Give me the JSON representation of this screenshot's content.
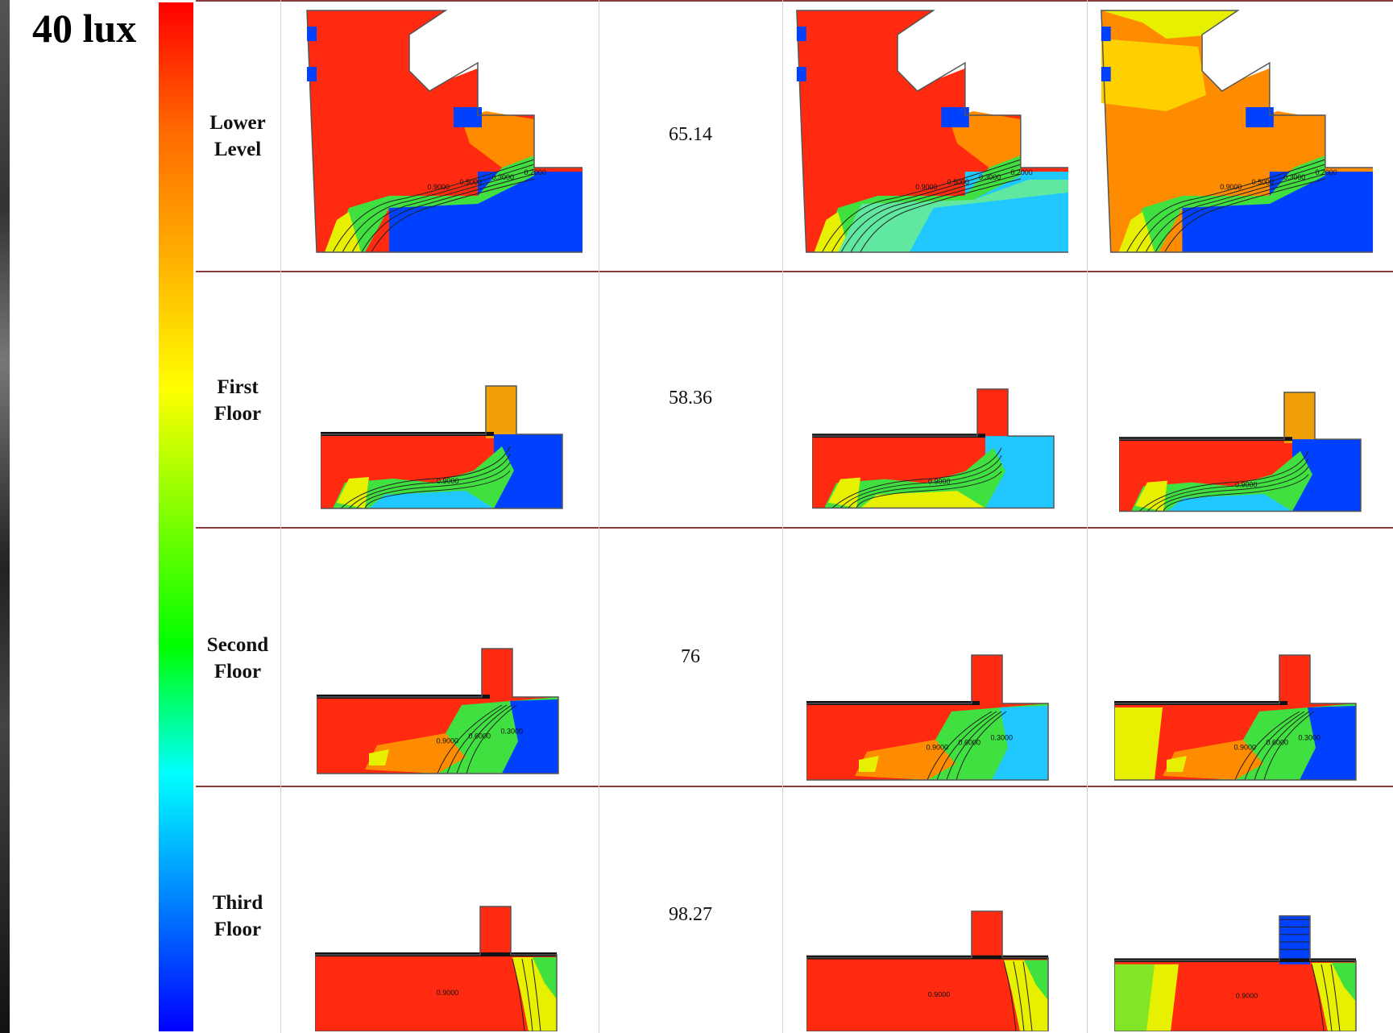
{
  "scale": {
    "title": "40 lux",
    "colors": [
      "#ff0000",
      "#ff6a00",
      "#ffb000",
      "#ffff00",
      "#7fff00",
      "#00ff00",
      "#00ffff",
      "#0080ff",
      "#0000ff"
    ]
  },
  "rows": [
    {
      "label_line1": "Lower",
      "label_line2": "Level",
      "value": "65.14",
      "map_labels": [
        "0.9000",
        "0.5000",
        "0.3000",
        "0.2000"
      ]
    },
    {
      "label_line1": "First",
      "label_line2": "Floor",
      "value": "58.36",
      "map_labels": [
        "0.9000"
      ]
    },
    {
      "label_line1": "Second",
      "label_line2": "Floor",
      "value": "76",
      "map_labels": [
        "0.9000",
        "0.6000",
        "0.3000"
      ]
    },
    {
      "label_line1": "Third",
      "label_line2": "Floor",
      "value": "98.27",
      "map_labels": [
        "0.9000"
      ]
    }
  ],
  "palette": {
    "red": "#ff2a10",
    "orange": "#ff8c00",
    "yellow": "#e6f000",
    "green": "#40e040",
    "cyan": "#20c8ff",
    "blue": "#0040ff",
    "frame": "#8a3a3a"
  }
}
